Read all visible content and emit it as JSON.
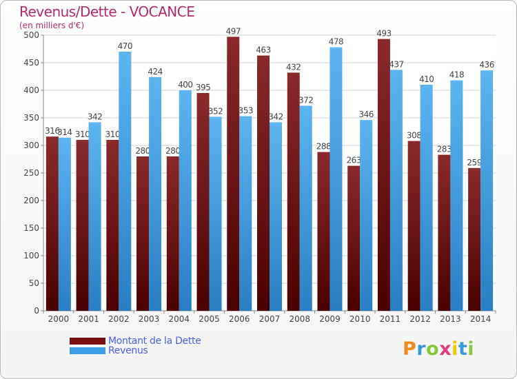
{
  "chart_data": {
    "type": "bar",
    "title": "Revenus/Dette - VOCANCE",
    "subtitle": "(en milliers d'€)",
    "categories": [
      "2000",
      "2001",
      "2002",
      "2003",
      "2004",
      "2005",
      "2006",
      "2007",
      "2008",
      "2009",
      "2010",
      "2011",
      "2012",
      "2013",
      "2014"
    ],
    "series": [
      {
        "name": "Montant de la Dette",
        "color": "#7a0f12",
        "values": [
          316,
          310,
          310,
          280,
          280,
          395,
          497,
          463,
          432,
          288,
          263,
          493,
          308,
          283,
          259
        ]
      },
      {
        "name": "Revenus",
        "color": "#3d9ee6",
        "values": [
          314,
          342,
          470,
          424,
          400,
          352,
          353,
          342,
          372,
          478,
          346,
          437,
          410,
          418,
          436
        ]
      }
    ],
    "ylim": [
      0,
      500
    ],
    "yticks": [
      0,
      50,
      100,
      150,
      200,
      250,
      300,
      350,
      400,
      450,
      500
    ],
    "grid": true,
    "xlabel": "",
    "ylabel": ""
  },
  "legend": {
    "items": [
      {
        "label": "Montant de la Dette",
        "color": "#7a0f12"
      },
      {
        "label": "Revenus",
        "color": "#3d9ee6"
      }
    ]
  },
  "logo": {
    "text": "Proxiti",
    "letters": [
      "P",
      "r",
      "o",
      "x",
      "i",
      "t",
      "i"
    ],
    "colors": [
      "#f08a1e",
      "#3a9ad9",
      "#8cc63f",
      "#e63b7a",
      "#f5c400",
      "#3a9ad9",
      "#8cc63f"
    ]
  }
}
